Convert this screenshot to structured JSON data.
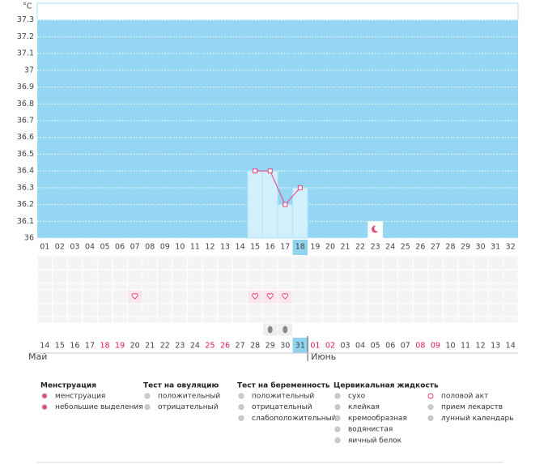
{
  "chart_data": {
    "type": "line",
    "ylabel": "°C",
    "categories": [
      "01",
      "02",
      "03",
      "04",
      "05",
      "06",
      "07",
      "08",
      "09",
      "10",
      "11",
      "12",
      "13",
      "14",
      "15",
      "16",
      "17",
      "18",
      "19",
      "20",
      "21",
      "22",
      "23",
      "24",
      "25",
      "26",
      "27",
      "28",
      "29",
      "30",
      "31",
      "32"
    ],
    "series": [
      {
        "color": "#e8427a",
        "values": [
          null,
          null,
          null,
          null,
          null,
          null,
          null,
          null,
          null,
          null,
          null,
          null,
          null,
          null,
          36.4,
          36.4,
          36.2,
          36.3,
          null,
          null,
          null,
          null,
          null,
          null,
          null,
          null,
          null,
          null,
          null,
          null,
          null,
          null
        ]
      }
    ],
    "ylim": [
      36,
      37.4
    ],
    "yticks": [
      36,
      36.1,
      36.2,
      36.3,
      36.4,
      36.5,
      36.6,
      36.7,
      36.8,
      36.9,
      37,
      37.1,
      37.2,
      37.3
    ],
    "grid": true,
    "highlight_day": "18",
    "intercourse": [
      "07",
      "15",
      "16",
      "17"
    ],
    "egg_white": [
      "16",
      "17"
    ],
    "lunar": [
      "23"
    ],
    "dates": [
      {
        "label": "14",
        "weekend": false
      },
      {
        "label": "15",
        "weekend": false
      },
      {
        "label": "16",
        "weekend": false
      },
      {
        "label": "17",
        "weekend": false
      },
      {
        "label": "18",
        "weekend": true
      },
      {
        "label": "19",
        "weekend": true
      },
      {
        "label": "20",
        "weekend": false
      },
      {
        "label": "21",
        "weekend": false
      },
      {
        "label": "22",
        "weekend": false
      },
      {
        "label": "23",
        "weekend": false
      },
      {
        "label": "24",
        "weekend": false
      },
      {
        "label": "25",
        "weekend": true
      },
      {
        "label": "26",
        "weekend": true
      },
      {
        "label": "27",
        "weekend": false
      },
      {
        "label": "28",
        "weekend": false
      },
      {
        "label": "29",
        "weekend": false
      },
      {
        "label": "30",
        "weekend": false
      },
      {
        "label": "31",
        "weekend": false
      },
      {
        "label": "01",
        "weekend": true
      },
      {
        "label": "02",
        "weekend": true
      },
      {
        "label": "03",
        "weekend": false
      },
      {
        "label": "04",
        "weekend": false
      },
      {
        "label": "05",
        "weekend": false
      },
      {
        "label": "06",
        "weekend": false
      },
      {
        "label": "07",
        "weekend": false
      },
      {
        "label": "08",
        "weekend": true
      },
      {
        "label": "09",
        "weekend": true
      },
      {
        "label": "10",
        "weekend": false
      },
      {
        "label": "11",
        "weekend": false
      },
      {
        "label": "12",
        "weekend": false
      },
      {
        "label": "13",
        "weekend": false
      },
      {
        "label": "14",
        "weekend": false
      }
    ],
    "months": [
      {
        "label": "Май",
        "start": 0
      },
      {
        "label": "Июнь",
        "start": 18
      }
    ]
  },
  "legend": [
    {
      "title": "Менструация",
      "items": [
        "менструация",
        "небольшие выделения"
      ]
    },
    {
      "title": "Тест на овуляцию",
      "items": [
        "положительный",
        "отрицательный"
      ]
    },
    {
      "title": "Тест на беременность",
      "items": [
        "положительный",
        "отрицательный",
        "слабоположительный"
      ]
    },
    {
      "title": "Цервикальная жидкость",
      "items": [
        "сухо",
        "клейкая",
        "кремообразная",
        "водянистая",
        "яичный белок"
      ]
    },
    {
      "items": [
        "половой акт",
        "прием лекарств",
        "лунный календарь"
      ]
    }
  ]
}
